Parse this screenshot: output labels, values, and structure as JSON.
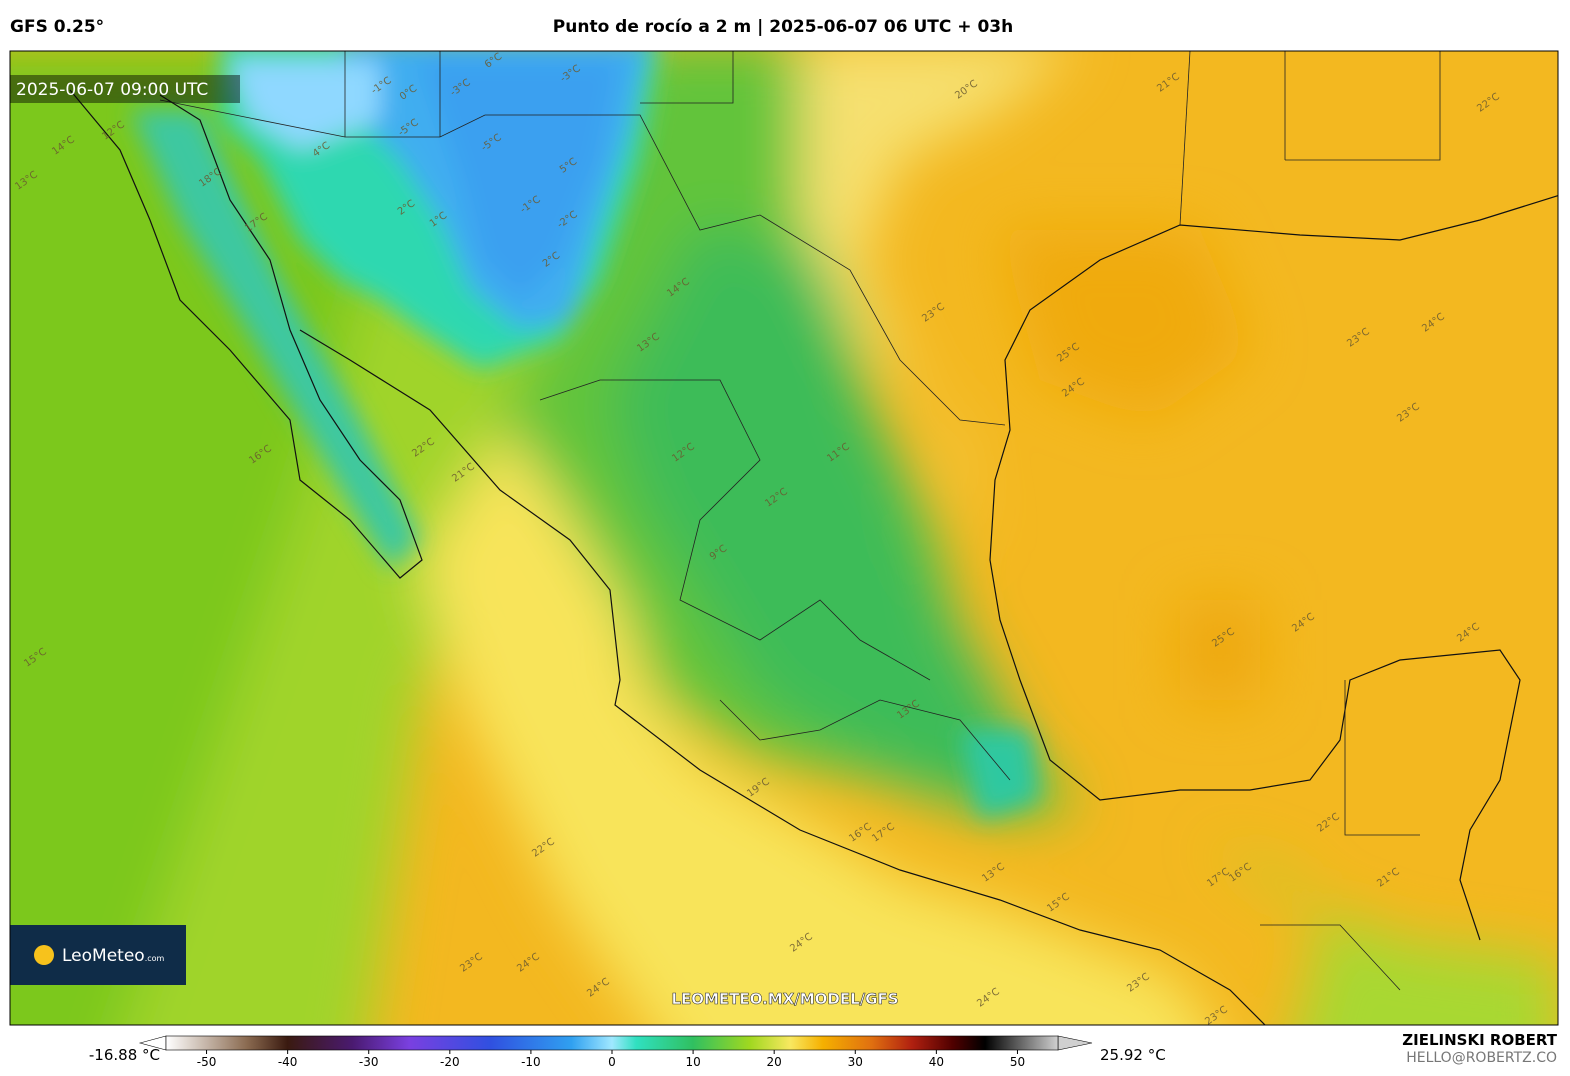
{
  "header": {
    "model": "GFS 0.25°",
    "title": "Punto de rocío a 2 m | 2025-06-07 06 UTC + 03h"
  },
  "map": {
    "valid_time": "2025-06-07 09:00 UTC",
    "url": "LEOMETEO.MX/MODEL/GFS",
    "logo": "LeoMeteo",
    "logo_suffix": ".com",
    "contour_labels": [
      "21°C",
      "22°C",
      "20°C",
      "23°C",
      "24°C",
      "25°C",
      "23°C",
      "24°C",
      "23°C",
      "25°C",
      "24°C",
      "24°C",
      "16°C",
      "21°C",
      "22°C",
      "15°C",
      "22°C",
      "23°C",
      "24°C",
      "24°C",
      "24°C",
      "24°C",
      "23°C",
      "23°C",
      "21°C",
      "22°C",
      "13°C",
      "14°C",
      "12°C",
      "18°C",
      "17°C",
      "14°C",
      "13°C",
      "12°C",
      "11°C",
      "12°C",
      "9°C",
      "13°C",
      "16°C",
      "17°C",
      "19°C",
      "13°C",
      "15°C",
      "17°C",
      "16°C",
      "4°C",
      "-1°C",
      "0°C",
      "-3°C",
      "-5°C",
      "-5°C",
      "-1°C",
      "-2°C",
      "2°C",
      "6°C",
      "-3°C",
      "5°C",
      "1°C",
      "2°C"
    ]
  },
  "colorbar": {
    "min_label": "-16.88 °C",
    "max_label": "25.92 °C",
    "lim": [
      -55,
      55
    ],
    "ticks": [
      -50,
      -40,
      -30,
      -20,
      -10,
      0,
      10,
      20,
      30,
      40,
      50
    ],
    "stops": [
      {
        "value": -55,
        "color": "#ffffff"
      },
      {
        "value": -45,
        "color": "#8a6a50"
      },
      {
        "value": -40,
        "color": "#3a1a10"
      },
      {
        "value": -32,
        "color": "#4a1a70"
      },
      {
        "value": -25,
        "color": "#7a40e0"
      },
      {
        "value": -15,
        "color": "#3050e0"
      },
      {
        "value": -5,
        "color": "#30a0f0"
      },
      {
        "value": 0,
        "color": "#a0e8ff"
      },
      {
        "value": 3,
        "color": "#30e0c0"
      },
      {
        "value": 10,
        "color": "#30c060"
      },
      {
        "value": 17,
        "color": "#a0d820"
      },
      {
        "value": 22,
        "color": "#f8e860"
      },
      {
        "value": 26,
        "color": "#f5b000"
      },
      {
        "value": 32,
        "color": "#e07010"
      },
      {
        "value": 37,
        "color": "#b02010"
      },
      {
        "value": 42,
        "color": "#500000"
      },
      {
        "value": 46,
        "color": "#000000"
      },
      {
        "value": 55,
        "color": "#d0d0d0"
      }
    ]
  },
  "footer": {
    "author": "ZIELINSKI ROBERT",
    "email": "HELLO@ROBERTZ.CO"
  }
}
